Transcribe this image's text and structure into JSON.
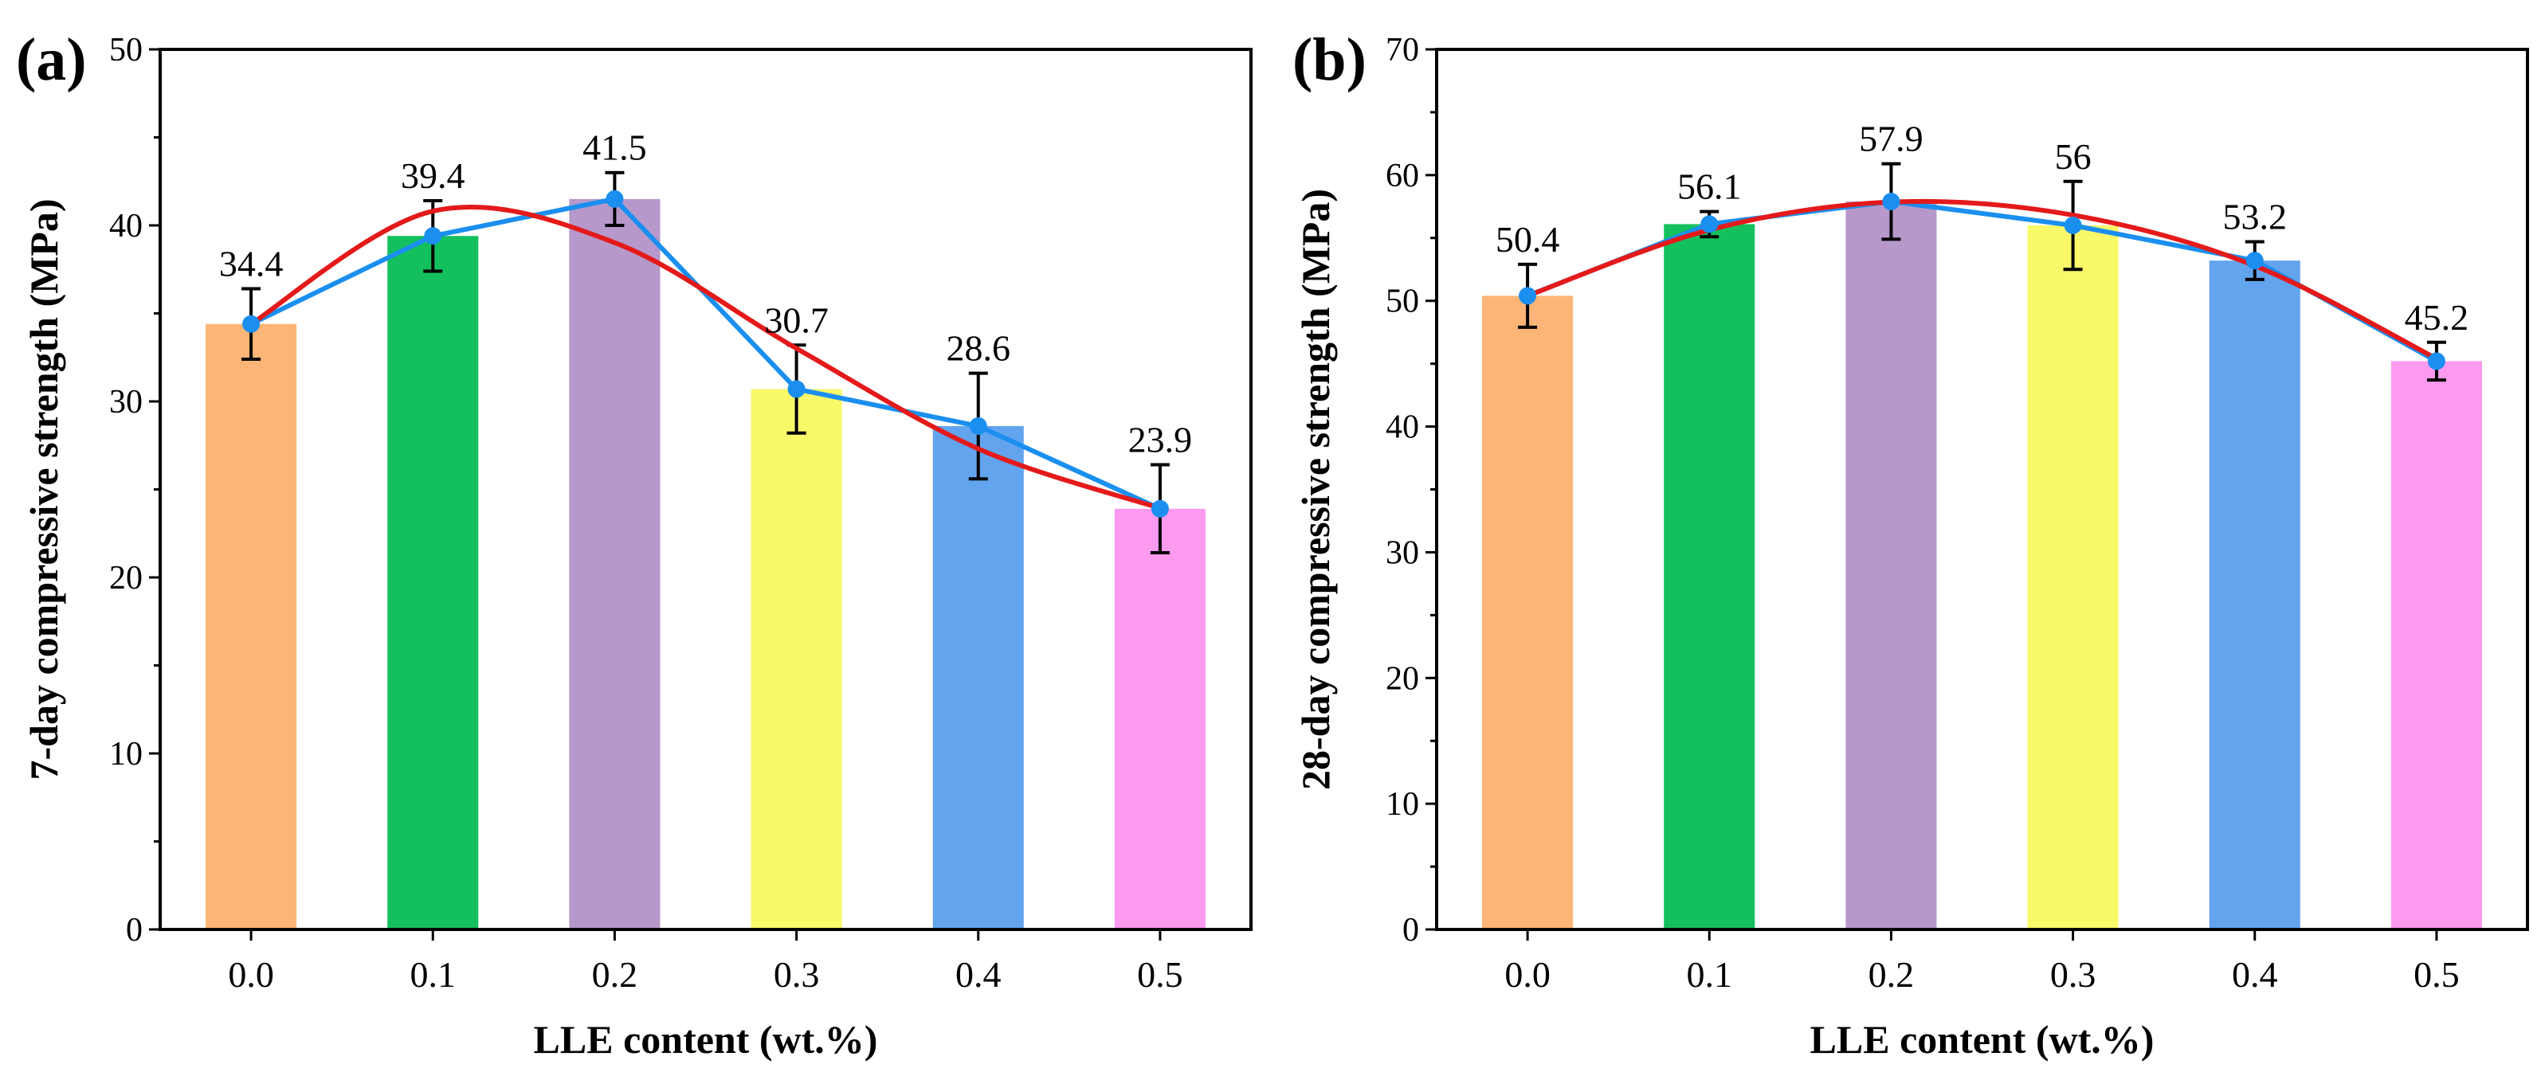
{
  "chart_data": [
    {
      "type": "bar",
      "panel_label": "(a)",
      "title": "",
      "xlabel": "LLE content (wt.%)",
      "ylabel": "7-day compressive strength (MPa)",
      "categories": [
        "0.0",
        "0.1",
        "0.2",
        "0.3",
        "0.4",
        "0.5"
      ],
      "values": [
        34.4,
        39.4,
        41.5,
        30.7,
        28.6,
        23.9
      ],
      "value_labels": [
        "34.4",
        "39.4",
        "41.5",
        "30.7",
        "28.6",
        "23.9"
      ],
      "errors": [
        2.0,
        2.0,
        1.5,
        2.5,
        3.0,
        2.5
      ],
      "bar_colors": [
        "#FDB577",
        "#14C05E",
        "#B698CA",
        "#F9F96A",
        "#63A4EE",
        "#FC9AF0"
      ],
      "ylim": [
        0,
        50
      ],
      "yticks": [
        "0",
        "10",
        "20",
        "30",
        "40",
        "50"
      ],
      "line_series": {
        "name": "mean",
        "color": "#1A8FF0",
        "values": [
          34.4,
          39.4,
          41.5,
          30.7,
          28.6,
          23.9
        ]
      },
      "fit_curve": {
        "name": "fit",
        "color": "#E41A1A",
        "values": [
          34.4,
          40.81,
          39.02,
          33.01,
          27.31,
          23.93
        ]
      }
    },
    {
      "type": "bar",
      "panel_label": "(b)",
      "title": "",
      "xlabel": "LLE content (wt.%)",
      "ylabel": "28-day compressive strength (MPa)",
      "categories": [
        "0.0",
        "0.1",
        "0.2",
        "0.3",
        "0.4",
        "0.5"
      ],
      "values": [
        50.4,
        56.1,
        57.9,
        56.0,
        53.2,
        45.2
      ],
      "value_labels": [
        "50.4",
        "56.1",
        "57.9",
        "56",
        "53.2",
        "45.2"
      ],
      "errors": [
        2.5,
        1.0,
        3.0,
        3.5,
        1.5,
        1.5
      ],
      "bar_colors": [
        "#FDB577",
        "#14C05E",
        "#B698CA",
        "#F9F96A",
        "#63A4EE",
        "#FC9AF0"
      ],
      "ylim": [
        0,
        70
      ],
      "yticks": [
        "0",
        "10",
        "20",
        "30",
        "40",
        "50",
        "60",
        "70"
      ],
      "line_series": {
        "name": "mean",
        "color": "#1A8FF0",
        "values": [
          50.4,
          56.1,
          57.9,
          56.0,
          53.2,
          45.2
        ]
      },
      "fit_curve": {
        "name": "fit",
        "color": "#E41A1A",
        "values": [
          50.4,
          55.64,
          57.86,
          56.82,
          52.79,
          45.4
        ]
      }
    }
  ]
}
